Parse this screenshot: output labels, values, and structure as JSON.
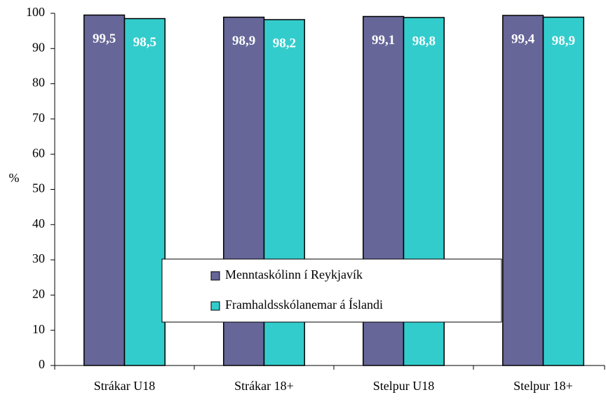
{
  "chart_data": {
    "type": "bar",
    "y_label": "%",
    "categories": [
      "Strákar U18",
      "Strákar 18+",
      "Stelpur U18",
      "Stelpur 18+"
    ],
    "series": [
      {
        "name": "Menntaskólinn í Reykjavík",
        "color": "#666699",
        "values": [
          99.5,
          98.9,
          99.1,
          99.4
        ],
        "value_labels": [
          "99,5",
          "98,9",
          "99,1",
          "99,4"
        ]
      },
      {
        "name": "Framhaldsskólanemar á Íslandi",
        "color": "#33cccc",
        "values": [
          98.5,
          98.2,
          98.8,
          98.9
        ],
        "value_labels": [
          "98,5",
          "98,2",
          "98,8",
          "98,9"
        ]
      }
    ],
    "ylim": [
      0,
      100
    ],
    "yticks": [
      0,
      10,
      20,
      30,
      40,
      50,
      60,
      70,
      80,
      90,
      100
    ],
    "grid": false,
    "legend": "bottom-center"
  }
}
